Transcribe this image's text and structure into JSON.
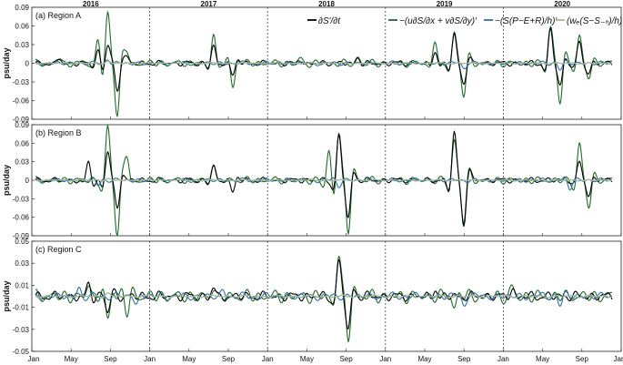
{
  "years": [
    "2016",
    "2017",
    "2018",
    "2019",
    "2020"
  ],
  "month_ticks": [
    "Jan",
    "May",
    "Sep",
    "Jan",
    "May",
    "Sep",
    "Jan",
    "May",
    "Sep",
    "Jan",
    "May",
    "Sep",
    "Jan",
    "May",
    "Sep"
  ],
  "ylabel": "psu/day",
  "legend": [
    {
      "label": "∂S′/∂t",
      "color": "#000000"
    },
    {
      "label": "−(u∂S/∂x + v∂S/∂y)′",
      "color": "#1f6b2a"
    },
    {
      "label": "−(S(P−E+R)/h)′",
      "color": "#2f6fb3"
    },
    {
      "label": "(wₑ(S−S₋ₕ)/h)′",
      "color": "#a8b98f"
    }
  ],
  "chart_data": [
    {
      "type": "line",
      "title": "(a) Region A",
      "ylabel": "psu/day",
      "ylim": [
        -0.09,
        0.09
      ],
      "yticks": [
        "0.09",
        "0.06",
        "0.03",
        "0",
        "-0.03",
        "-0.06",
        "-0.09"
      ],
      "xlim": [
        "2016-01",
        "2020-12"
      ],
      "grid": false,
      "legend_position": "top-right",
      "series": [
        {
          "name": "∂S′/∂t",
          "color": "#000000",
          "anchors": [
            [
              "2016-03",
              0.008
            ],
            [
              "2016-07",
              0.02
            ],
            [
              "2016-08",
              0.028
            ],
            [
              "2016-09",
              -0.045
            ],
            [
              "2016-10",
              0.01
            ],
            [
              "2017-07",
              0.03
            ],
            [
              "2017-09",
              -0.02
            ],
            [
              "2018-04",
              0.006
            ],
            [
              "2018-10",
              0.01
            ],
            [
              "2019-06",
              0.02
            ],
            [
              "2019-08",
              0.045
            ],
            [
              "2019-09",
              -0.03
            ],
            [
              "2020-06",
              0.055
            ],
            [
              "2020-07",
              -0.035
            ],
            [
              "2020-09",
              0.035
            ],
            [
              "2020-10",
              -0.015
            ]
          ]
        },
        {
          "name": "−(u∂S/∂x + v∂S/∂y)′",
          "color": "#1f6b2a",
          "anchors": [
            [
              "2016-03",
              0.01
            ],
            [
              "2016-07",
              0.045
            ],
            [
              "2016-08",
              0.08
            ],
            [
              "2016-09",
              -0.08
            ],
            [
              "2016-10",
              0.02
            ],
            [
              "2017-07",
              0.052
            ],
            [
              "2017-09",
              -0.04
            ],
            [
              "2018-04",
              0.008
            ],
            [
              "2018-10",
              0.01
            ],
            [
              "2019-06",
              0.04
            ],
            [
              "2019-08",
              0.05
            ],
            [
              "2019-09",
              -0.05
            ],
            [
              "2020-06",
              0.06
            ],
            [
              "2020-07",
              -0.06
            ],
            [
              "2020-09",
              0.045
            ],
            [
              "2020-10",
              -0.02
            ]
          ]
        },
        {
          "name": "−(S(P−E+R)/h)′",
          "color": "#2f6fb3",
          "anchors": [
            [
              "2016-08",
              0.008
            ],
            [
              "2019-09",
              -0.008
            ],
            [
              "2020-07",
              -0.01
            ]
          ]
        },
        {
          "name": "(wₑ(S−S₋ₕ)/h)′",
          "color": "#a8b98f",
          "anchors": [
            [
              "2016-08",
              0.004
            ]
          ]
        }
      ]
    },
    {
      "type": "line",
      "title": "(b) Region B",
      "ylabel": "psu/day",
      "ylim": [
        -0.09,
        0.09
      ],
      "yticks": [
        "0.09",
        "0.06",
        "0.03",
        "0",
        "-0.03",
        "-0.06",
        "-0.09"
      ],
      "xlim": [
        "2016-01",
        "2020-12"
      ],
      "grid": false,
      "series": [
        {
          "name": "∂S′/∂t",
          "color": "#000000",
          "anchors": [
            [
              "2016-06",
              0.03
            ],
            [
              "2016-08",
              0.045
            ],
            [
              "2016-09",
              -0.045
            ],
            [
              "2017-07",
              0.025
            ],
            [
              "2017-09",
              -0.02
            ],
            [
              "2018-08",
              0.07
            ],
            [
              "2018-09",
              -0.06
            ],
            [
              "2019-08",
              0.075
            ],
            [
              "2019-09",
              -0.07
            ],
            [
              "2020-09",
              0.03
            ],
            [
              "2020-10",
              -0.025
            ]
          ]
        },
        {
          "name": "−(u∂S/∂x + v∂S/∂y)′",
          "color": "#1f6b2a",
          "anchors": [
            [
              "2016-08",
              0.085
            ],
            [
              "2016-09",
              -0.085
            ],
            [
              "2016-10",
              0.04
            ],
            [
              "2017-07",
              0.03
            ],
            [
              "2018-07",
              0.05
            ],
            [
              "2018-08",
              0.08
            ],
            [
              "2018-09",
              -0.083
            ],
            [
              "2019-08",
              0.065
            ],
            [
              "2019-09",
              -0.065
            ],
            [
              "2020-09",
              0.06
            ],
            [
              "2020-10",
              -0.04
            ]
          ]
        },
        {
          "name": "−(S(P−E+R)/h)′",
          "color": "#2f6fb3",
          "anchors": [
            [
              "2016-07",
              -0.008
            ],
            [
              "2018-08",
              -0.01
            ],
            [
              "2020-08",
              -0.015
            ]
          ]
        },
        {
          "name": "(wₑ(S−S₋ₕ)/h)′",
          "color": "#a8b98f",
          "anchors": [
            [
              "2016-08",
              0.004
            ]
          ]
        }
      ]
    },
    {
      "type": "line",
      "title": "(c) Region C",
      "ylabel": "psu/day",
      "ylim": [
        -0.05,
        0.05
      ],
      "yticks": [
        "0.05",
        "0.03",
        "0.01",
        "-0.01",
        "-0.03",
        "-0.05"
      ],
      "xlim": [
        "2016-01",
        "2020-12"
      ],
      "grid": false,
      "series": [
        {
          "name": "∂S′/∂t",
          "color": "#000000",
          "anchors": [
            [
              "2016-06",
              0.012
            ],
            [
              "2016-08",
              -0.015
            ],
            [
              "2017-07",
              0.008
            ],
            [
              "2018-08",
              0.03
            ],
            [
              "2018-09",
              -0.03
            ],
            [
              "2019-06",
              0.007
            ],
            [
              "2020-02",
              0.008
            ]
          ]
        },
        {
          "name": "−(u∂S/∂x + v∂S/∂y)′",
          "color": "#1f6b2a",
          "anchors": [
            [
              "2016-06",
              0.013
            ],
            [
              "2016-08",
              -0.022
            ],
            [
              "2016-10",
              -0.015
            ],
            [
              "2017-07",
              0.01
            ],
            [
              "2018-08",
              0.04
            ],
            [
              "2018-09",
              -0.038
            ],
            [
              "2019-08",
              -0.01
            ],
            [
              "2020-02",
              0.008
            ]
          ]
        },
        {
          "name": "−(S(P−E+R)/h)′",
          "color": "#2f6fb3",
          "anchors": [
            [
              "2016-05",
              0.008
            ],
            [
              "2016-11",
              -0.008
            ],
            [
              "2017-08",
              0.006
            ],
            [
              "2019-09",
              -0.008
            ],
            [
              "2020-07",
              -0.008
            ]
          ]
        },
        {
          "name": "(wₑ(S−S₋ₕ)/h)′",
          "color": "#a8b98f",
          "anchors": [
            [
              "2016-08",
              0.004
            ]
          ]
        }
      ]
    }
  ]
}
